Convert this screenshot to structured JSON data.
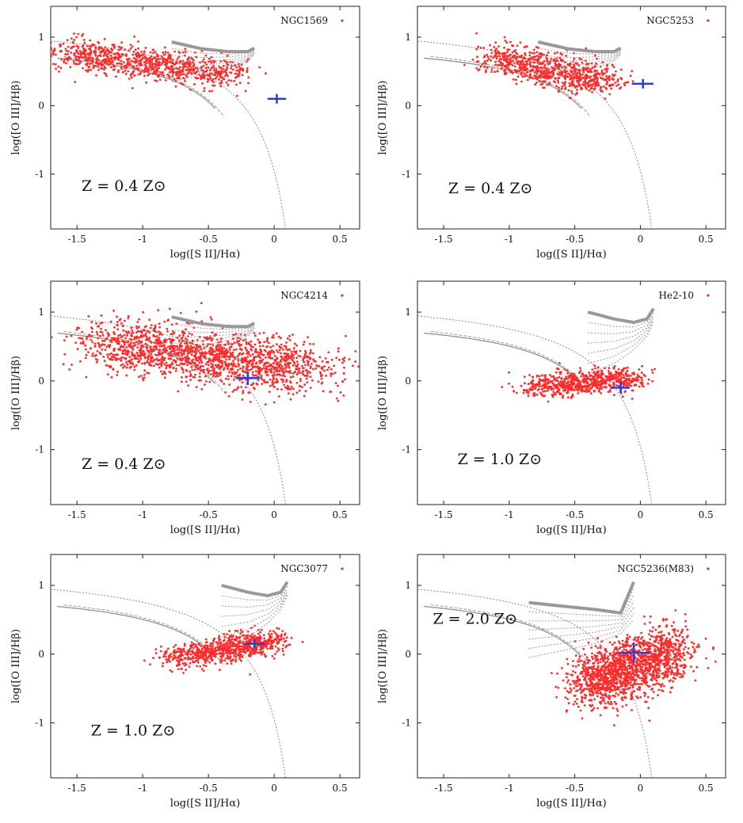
{
  "chart_data": [
    {
      "type": "scatter",
      "legend": "NGC1569",
      "metallicity_label": "Z = 0.4 Z⊙",
      "xlabel": "log([S II]/Hα)",
      "ylabel": "log([O III]/Hβ)",
      "xlim": [
        -1.7,
        0.65
      ],
      "ylim": [
        -1.8,
        1.45
      ],
      "xticks": [
        "-1.5",
        "-1",
        "-0.5",
        "0",
        "0.5"
      ],
      "yticks": [
        "1",
        "0",
        "-1"
      ],
      "cloud": {
        "x0": -1.6,
        "x1": -0.3,
        "y0": 0.8,
        "y1": 0.45,
        "spread_x": 0.22,
        "spread_y": 0.12,
        "n": 900
      },
      "marker": {
        "x": 0.02,
        "y": 0.1,
        "xerr": 0.07,
        "yerr": 0.07
      },
      "model_grid": {
        "x": [
          -0.78,
          -0.55,
          -0.35,
          -0.2,
          -0.15
        ],
        "y_top": [
          0.93,
          0.83,
          0.79,
          0.79,
          0.84
        ],
        "y_bottom": [
          0.35,
          0.45,
          0.55,
          0.65,
          0.75
        ]
      }
    },
    {
      "type": "scatter",
      "legend": "NGC5253",
      "metallicity_label": "Z = 0.4 Z⊙",
      "xlabel": "log([S II]/Hα)",
      "ylabel": "log([O III]/Hβ)",
      "xlim": [
        -1.7,
        0.65
      ],
      "ylim": [
        -1.8,
        1.45
      ],
      "xticks": [
        "-1.5",
        "-1",
        "-0.5",
        "0",
        "0.5"
      ],
      "yticks": [
        "1",
        "0",
        "-1"
      ],
      "cloud": {
        "x0": -1.1,
        "x1": -0.25,
        "y0": 0.7,
        "y1": 0.35,
        "spread_x": 0.18,
        "spread_y": 0.12,
        "n": 800
      },
      "marker": {
        "x": 0.02,
        "y": 0.32,
        "xerr": 0.08,
        "yerr": 0.07
      },
      "model_grid": {
        "x": [
          -0.78,
          -0.55,
          -0.35,
          -0.2,
          -0.15
        ],
        "y_top": [
          0.93,
          0.83,
          0.79,
          0.79,
          0.84
        ],
        "y_bottom": [
          0.35,
          0.45,
          0.55,
          0.65,
          0.75
        ]
      }
    },
    {
      "type": "scatter",
      "legend": "NGC4214",
      "metallicity_label": "Z = 0.4 Z⊙",
      "xlabel": "log([S II]/Hα)",
      "ylabel": "log([O III]/Hβ)",
      "xlim": [
        -1.7,
        0.65
      ],
      "ylim": [
        -1.8,
        1.45
      ],
      "xticks": [
        "-1.5",
        "-1",
        "-0.5",
        "0",
        "0.5"
      ],
      "yticks": [
        "1",
        "0",
        "-1"
      ],
      "cloud": {
        "x0": -1.3,
        "x1": 0.3,
        "y0": 0.55,
        "y1": 0.15,
        "spread_x": 0.28,
        "spread_y": 0.2,
        "n": 1700
      },
      "marker": {
        "x": -0.2,
        "y": 0.04,
        "xerr": 0.09,
        "yerr": 0.1
      },
      "model_grid": {
        "x": [
          -0.78,
          -0.55,
          -0.35,
          -0.2,
          -0.15
        ],
        "y_top": [
          0.93,
          0.83,
          0.79,
          0.79,
          0.84
        ],
        "y_bottom": [
          0.35,
          0.45,
          0.55,
          0.65,
          0.75
        ]
      }
    },
    {
      "type": "scatter",
      "legend": "He2-10",
      "metallicity_label": "Z = 1.0 Z⊙",
      "xlabel": "log([S II]/Hα)",
      "ylabel": "log([O III]/Hβ)",
      "xlim": [
        -1.7,
        0.65
      ],
      "ylim": [
        -1.8,
        1.45
      ],
      "xticks": [
        "-1.5",
        "-1",
        "-0.5",
        "0",
        "0.5"
      ],
      "yticks": [
        "1",
        "0",
        "-1"
      ],
      "cloud": {
        "x0": -0.8,
        "x1": -0.05,
        "y0": -0.1,
        "y1": 0.05,
        "spread_x": 0.16,
        "spread_y": 0.09,
        "n": 700
      },
      "marker": {
        "x": -0.15,
        "y": -0.1,
        "xerr": 0.07,
        "yerr": 0.08
      },
      "model_grid": {
        "x": [
          -0.4,
          -0.2,
          -0.05,
          0.05,
          0.1
        ],
        "y_top": [
          1.0,
          0.9,
          0.85,
          0.9,
          1.05
        ],
        "y_bottom": [
          0.1,
          0.25,
          0.45,
          0.65,
          0.85
        ]
      }
    },
    {
      "type": "scatter",
      "legend": "NGC3077",
      "metallicity_label": "Z = 1.0 Z⊙",
      "xlabel": "log([S II]/Hα)",
      "ylabel": "log([O III]/Hβ)",
      "xlim": [
        -1.7,
        0.65
      ],
      "ylim": [
        -1.8,
        1.45
      ],
      "xticks": [
        "-1.5",
        "-1",
        "-0.5",
        "0",
        "0.5"
      ],
      "yticks": [
        "1",
        "0",
        "-1"
      ],
      "cloud": {
        "x0": -0.75,
        "x1": 0.0,
        "y0": -0.05,
        "y1": 0.2,
        "spread_x": 0.16,
        "spread_y": 0.09,
        "n": 800
      },
      "marker": {
        "x": -0.15,
        "y": 0.15,
        "xerr": 0.08,
        "yerr": 0.07
      },
      "model_grid": {
        "x": [
          -0.4,
          -0.2,
          -0.05,
          0.05,
          0.1
        ],
        "y_top": [
          1.0,
          0.9,
          0.85,
          0.9,
          1.05
        ],
        "y_bottom": [
          0.1,
          0.25,
          0.45,
          0.65,
          0.85
        ]
      }
    },
    {
      "type": "scatter",
      "legend": "NGC5236(M83)",
      "metallicity_label": "Z = 2.0 Z⊙",
      "xlabel": "log([S II]/Hα)",
      "ylabel": "log([O III]/Hβ)",
      "xlim": [
        -1.7,
        0.65
      ],
      "ylim": [
        -1.8,
        1.45
      ],
      "xticks": [
        "-1.5",
        "-1",
        "-0.5",
        "0",
        "0.5"
      ],
      "yticks": [
        "1",
        "0",
        "-1"
      ],
      "cloud": {
        "x0": -0.45,
        "x1": 0.3,
        "y0": -0.45,
        "y1": 0.05,
        "spread_x": 0.17,
        "spread_y": 0.22,
        "n": 1600
      },
      "marker": {
        "x": -0.05,
        "y": 0.02,
        "xerr": 0.12,
        "yerr": 0.15
      },
      "model_grid": {
        "x": [
          -0.85,
          -0.6,
          -0.35,
          -0.15,
          -0.05
        ],
        "y_top": [
          0.75,
          0.7,
          0.65,
          0.6,
          1.05
        ],
        "y_bottom": [
          -0.05,
          0.05,
          0.15,
          0.3,
          0.5
        ]
      }
    }
  ]
}
